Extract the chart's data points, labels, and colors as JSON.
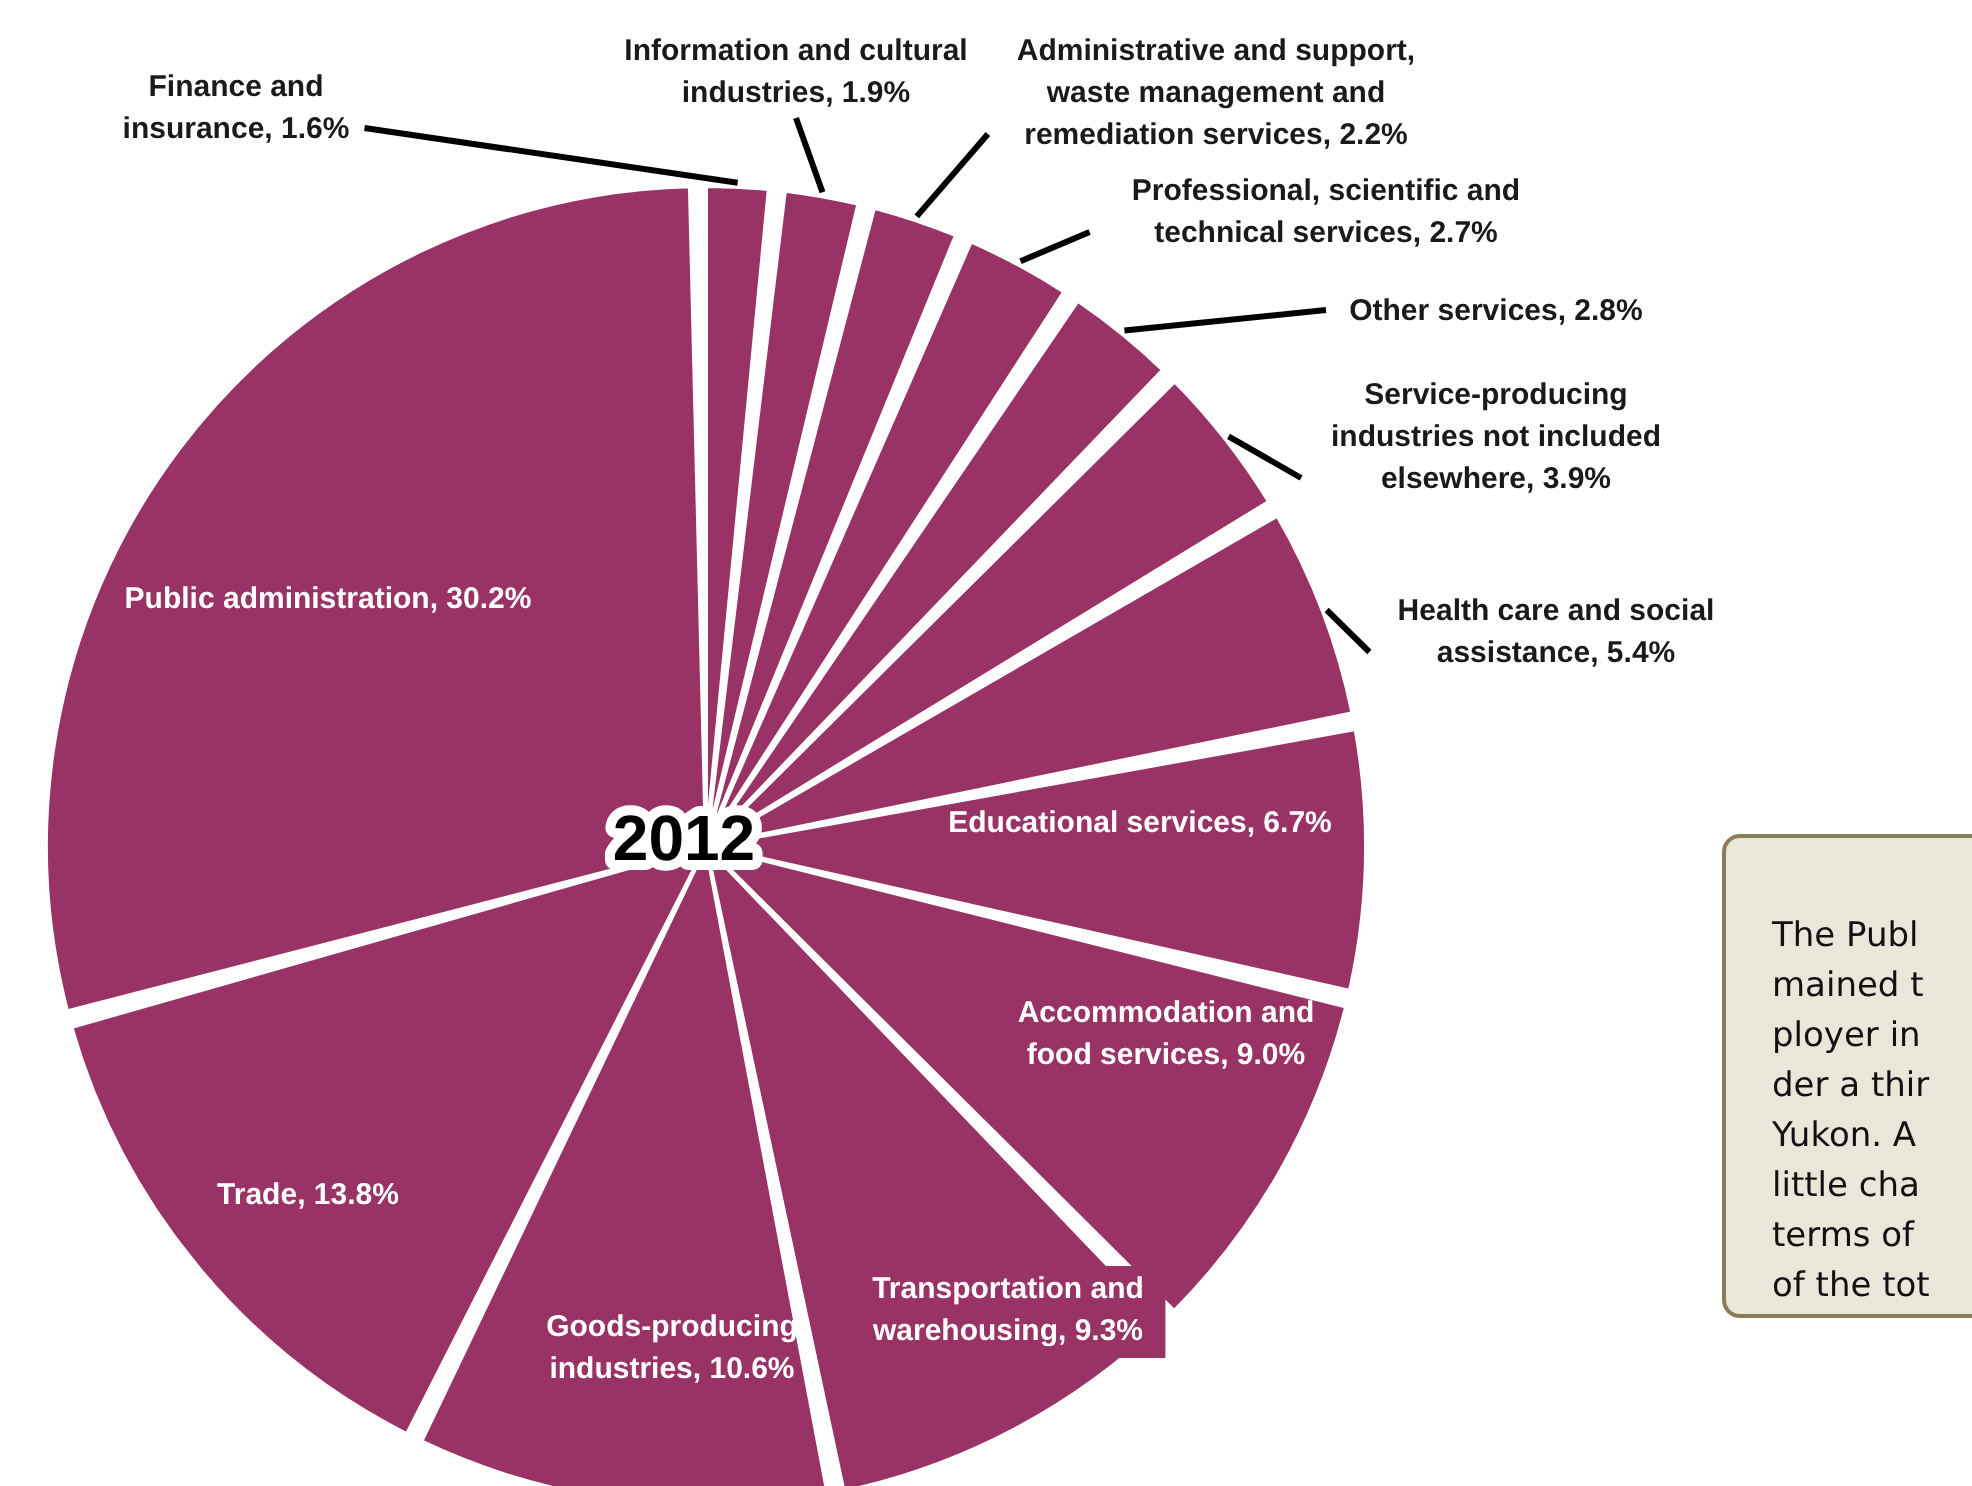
{
  "chart_data": {
    "type": "pie",
    "categories": [
      "Finance and insurance",
      "Information and cultural industries",
      "Administrative and support, waste management and remediation services",
      "Professional, scientific and technical services",
      "Other services",
      "Service-producing industries not included elsewhere",
      "Health care and social assistance",
      "Educational services",
      "Accommodation and food services",
      "Transportation and warehousing",
      "Goods-producing industries",
      "Trade",
      "Public administration"
    ],
    "values": [
      1.6,
      1.9,
      2.2,
      2.7,
      2.8,
      3.9,
      5.4,
      6.7,
      9.0,
      9.3,
      10.6,
      13.8,
      30.2
    ],
    "value_labels": [
      "1.6%",
      "1.9%",
      "2.2%",
      "2.7%",
      "2.8%",
      "3.9%",
      "5.4%",
      "6.7%",
      "9.0%",
      "9.3%",
      "10.6%",
      "13.8%",
      "30.2%"
    ],
    "colors": [
      "#993366",
      "#993366",
      "#993366",
      "#993366",
      "#993366",
      "#993366",
      "#993366",
      "#993366",
      "#993366",
      "#993366",
      "#993366",
      "#993366",
      "#993366"
    ],
    "annotations": [
      "2012",
      "The Publ\nmained t\nployer in\nder a thir\nYukon. A\nlittle cha\nterms of\nof the tot"
    ]
  }
}
